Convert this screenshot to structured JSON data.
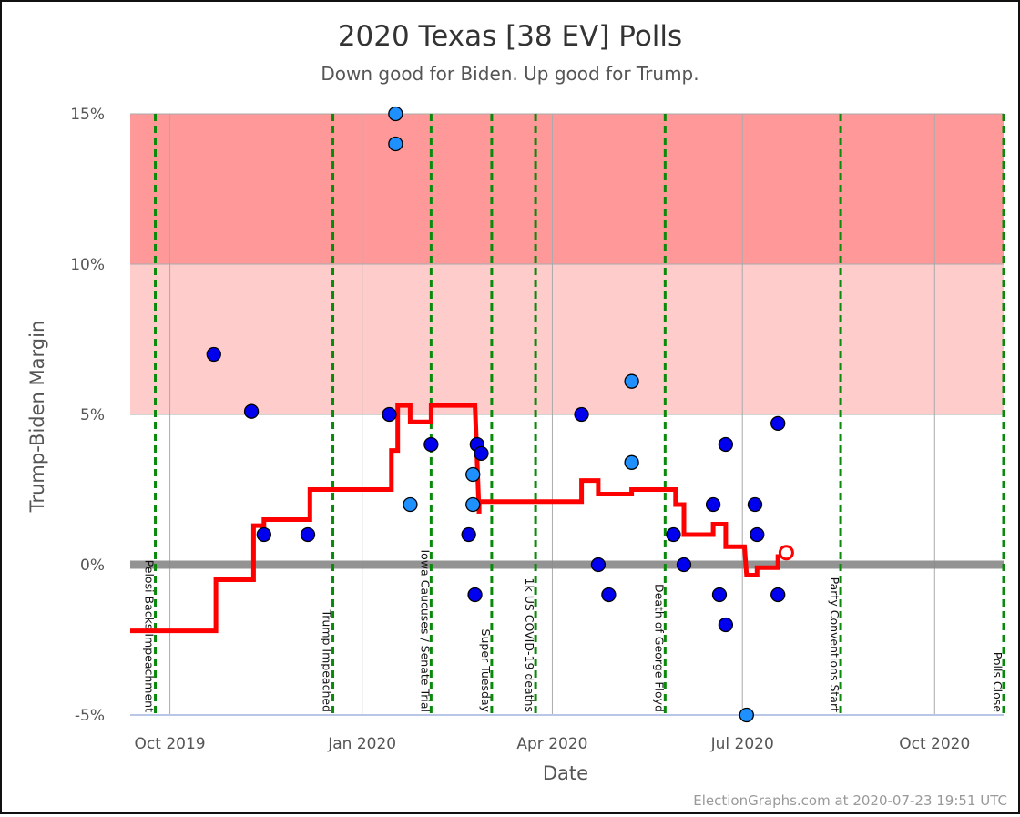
{
  "chart_data": {
    "type": "scatter",
    "title": "2020 Texas [38 EV] Polls",
    "subtitle": "Down good for Biden. Up good for Trump.",
    "xlabel": "Date",
    "ylabel": "Trump-Biden Margin",
    "credit": "ElectionGraphs.com at 2020-07-23 19:51 UTC",
    "xlim": [
      "2019-09-12",
      "2020-11-03"
    ],
    "ylim": [
      -5,
      15
    ],
    "grid": true,
    "x_ticks": [
      {
        "date": "2019-10-01",
        "label": "Oct 2019"
      },
      {
        "date": "2020-01-01",
        "label": "Jan 2020"
      },
      {
        "date": "2020-04-01",
        "label": "Apr 2020"
      },
      {
        "date": "2020-07-01",
        "label": "Jul 2020"
      },
      {
        "date": "2020-10-01",
        "label": "Oct 2020"
      }
    ],
    "y_ticks": [
      {
        "value": -5,
        "label": "-5%"
      },
      {
        "value": 0,
        "label": "0%"
      },
      {
        "value": 5,
        "label": "5%"
      },
      {
        "value": 10,
        "label": "10%"
      },
      {
        "value": 15,
        "label": "15%"
      }
    ],
    "bands": [
      {
        "from": 10,
        "to": 15,
        "color": "#ff9999"
      },
      {
        "from": 5,
        "to": 10,
        "color": "#ffcccc"
      }
    ],
    "colors": {
      "strong_band": "#ff9999",
      "lean_band": "#ffcccc",
      "zero_line": "#888888",
      "grid": "#aaaaaa",
      "event_line": "#0a8a0a",
      "average_line": "#ff0000",
      "poll_dark": "#0000ee",
      "poll_light": "#1e90ff",
      "poll_outline": "#000000"
    },
    "events": [
      {
        "date": "2019-09-24",
        "label": "Pelosi Backs Impeachment"
      },
      {
        "date": "2019-12-18",
        "label": "Trump Impeached"
      },
      {
        "date": "2020-02-03",
        "label": "Iowa Caucuses / Senate Trial"
      },
      {
        "date": "2020-03-03",
        "label": "Super Tuesday"
      },
      {
        "date": "2020-03-24",
        "label": "1k US COVID-19 deaths"
      },
      {
        "date": "2020-05-25",
        "label": "Death of George Floyd"
      },
      {
        "date": "2020-08-17",
        "label": "Party Conventions Start"
      },
      {
        "date": "2020-11-03",
        "label": "Polls Close"
      }
    ],
    "polls": [
      {
        "date": "2019-10-22",
        "margin": 7,
        "shade": "dark"
      },
      {
        "date": "2019-11-09",
        "margin": 5.1,
        "shade": "dark"
      },
      {
        "date": "2019-11-15",
        "margin": 1,
        "shade": "dark"
      },
      {
        "date": "2019-12-06",
        "margin": 1,
        "shade": "dark"
      },
      {
        "date": "2020-01-14",
        "margin": 5,
        "shade": "dark"
      },
      {
        "date": "2020-01-17",
        "margin": 15,
        "shade": "light"
      },
      {
        "date": "2020-01-17",
        "margin": 14,
        "shade": "light"
      },
      {
        "date": "2020-01-24",
        "margin": 2,
        "shade": "light"
      },
      {
        "date": "2020-02-03",
        "margin": 4,
        "shade": "dark"
      },
      {
        "date": "2020-02-21",
        "margin": 1,
        "shade": "dark"
      },
      {
        "date": "2020-02-23",
        "margin": 3,
        "shade": "light"
      },
      {
        "date": "2020-02-23",
        "margin": 2,
        "shade": "light"
      },
      {
        "date": "2020-02-24",
        "margin": -1,
        "shade": "dark"
      },
      {
        "date": "2020-02-25",
        "margin": 4,
        "shade": "dark"
      },
      {
        "date": "2020-02-27",
        "margin": 3.7,
        "shade": "dark"
      },
      {
        "date": "2020-04-15",
        "margin": 5,
        "shade": "dark"
      },
      {
        "date": "2020-04-23",
        "margin": 0,
        "shade": "dark"
      },
      {
        "date": "2020-04-28",
        "margin": -1,
        "shade": "dark"
      },
      {
        "date": "2020-05-09",
        "margin": 6.1,
        "shade": "light"
      },
      {
        "date": "2020-05-09",
        "margin": 3.4,
        "shade": "light"
      },
      {
        "date": "2020-05-29",
        "margin": 1,
        "shade": "dark"
      },
      {
        "date": "2020-06-03",
        "margin": 0,
        "shade": "dark"
      },
      {
        "date": "2020-06-17",
        "margin": 2,
        "shade": "dark"
      },
      {
        "date": "2020-06-20",
        "margin": -1,
        "shade": "dark"
      },
      {
        "date": "2020-06-23",
        "margin": 4,
        "shade": "dark"
      },
      {
        "date": "2020-06-23",
        "margin": -2,
        "shade": "dark"
      },
      {
        "date": "2020-07-03",
        "margin": -5,
        "shade": "light"
      },
      {
        "date": "2020-07-07",
        "margin": 2,
        "shade": "dark"
      },
      {
        "date": "2020-07-08",
        "margin": 1,
        "shade": "dark"
      },
      {
        "date": "2020-07-18",
        "margin": 4.7,
        "shade": "dark"
      },
      {
        "date": "2020-07-18",
        "margin": -1,
        "shade": "dark"
      }
    ],
    "average": [
      [
        "2019-09-12",
        -2.2
      ],
      [
        "2019-10-23",
        -2.2
      ],
      [
        "2019-10-23",
        -0.5
      ],
      [
        "2019-11-10",
        -0.5
      ],
      [
        "2019-11-10",
        1.3
      ],
      [
        "2019-11-15",
        1.3
      ],
      [
        "2019-11-15",
        1.5
      ],
      [
        "2019-12-07",
        1.5
      ],
      [
        "2019-12-07",
        2.5
      ],
      [
        "2020-01-15",
        2.5
      ],
      [
        "2020-01-15",
        3.8
      ],
      [
        "2020-01-18",
        3.8
      ],
      [
        "2020-01-18",
        5.3
      ],
      [
        "2020-01-24",
        5.3
      ],
      [
        "2020-01-24",
        4.75
      ],
      [
        "2020-02-03",
        4.75
      ],
      [
        "2020-02-03",
        5.3
      ],
      [
        "2020-02-24",
        5.3
      ],
      [
        "2020-02-26",
        1.7
      ],
      [
        "2020-02-26",
        2.1
      ],
      [
        "2020-04-15",
        2.1
      ],
      [
        "2020-04-15",
        2.8
      ],
      [
        "2020-04-23",
        2.8
      ],
      [
        "2020-04-23",
        2.35
      ],
      [
        "2020-05-09",
        2.35
      ],
      [
        "2020-05-09",
        2.5
      ],
      [
        "2020-05-30",
        2.5
      ],
      [
        "2020-05-30",
        2.0
      ],
      [
        "2020-06-03",
        2.0
      ],
      [
        "2020-06-03",
        1.0
      ],
      [
        "2020-06-17",
        1.0
      ],
      [
        "2020-06-17",
        1.35
      ],
      [
        "2020-06-23",
        1.35
      ],
      [
        "2020-06-23",
        0.6
      ],
      [
        "2020-07-02",
        0.6
      ],
      [
        "2020-07-03",
        -0.35
      ],
      [
        "2020-07-08",
        -0.35
      ],
      [
        "2020-07-08",
        -0.1
      ],
      [
        "2020-07-18",
        -0.1
      ],
      [
        "2020-07-18",
        0.35
      ]
    ],
    "current_estimate": {
      "date": "2020-07-22",
      "margin": 0.4
    }
  }
}
